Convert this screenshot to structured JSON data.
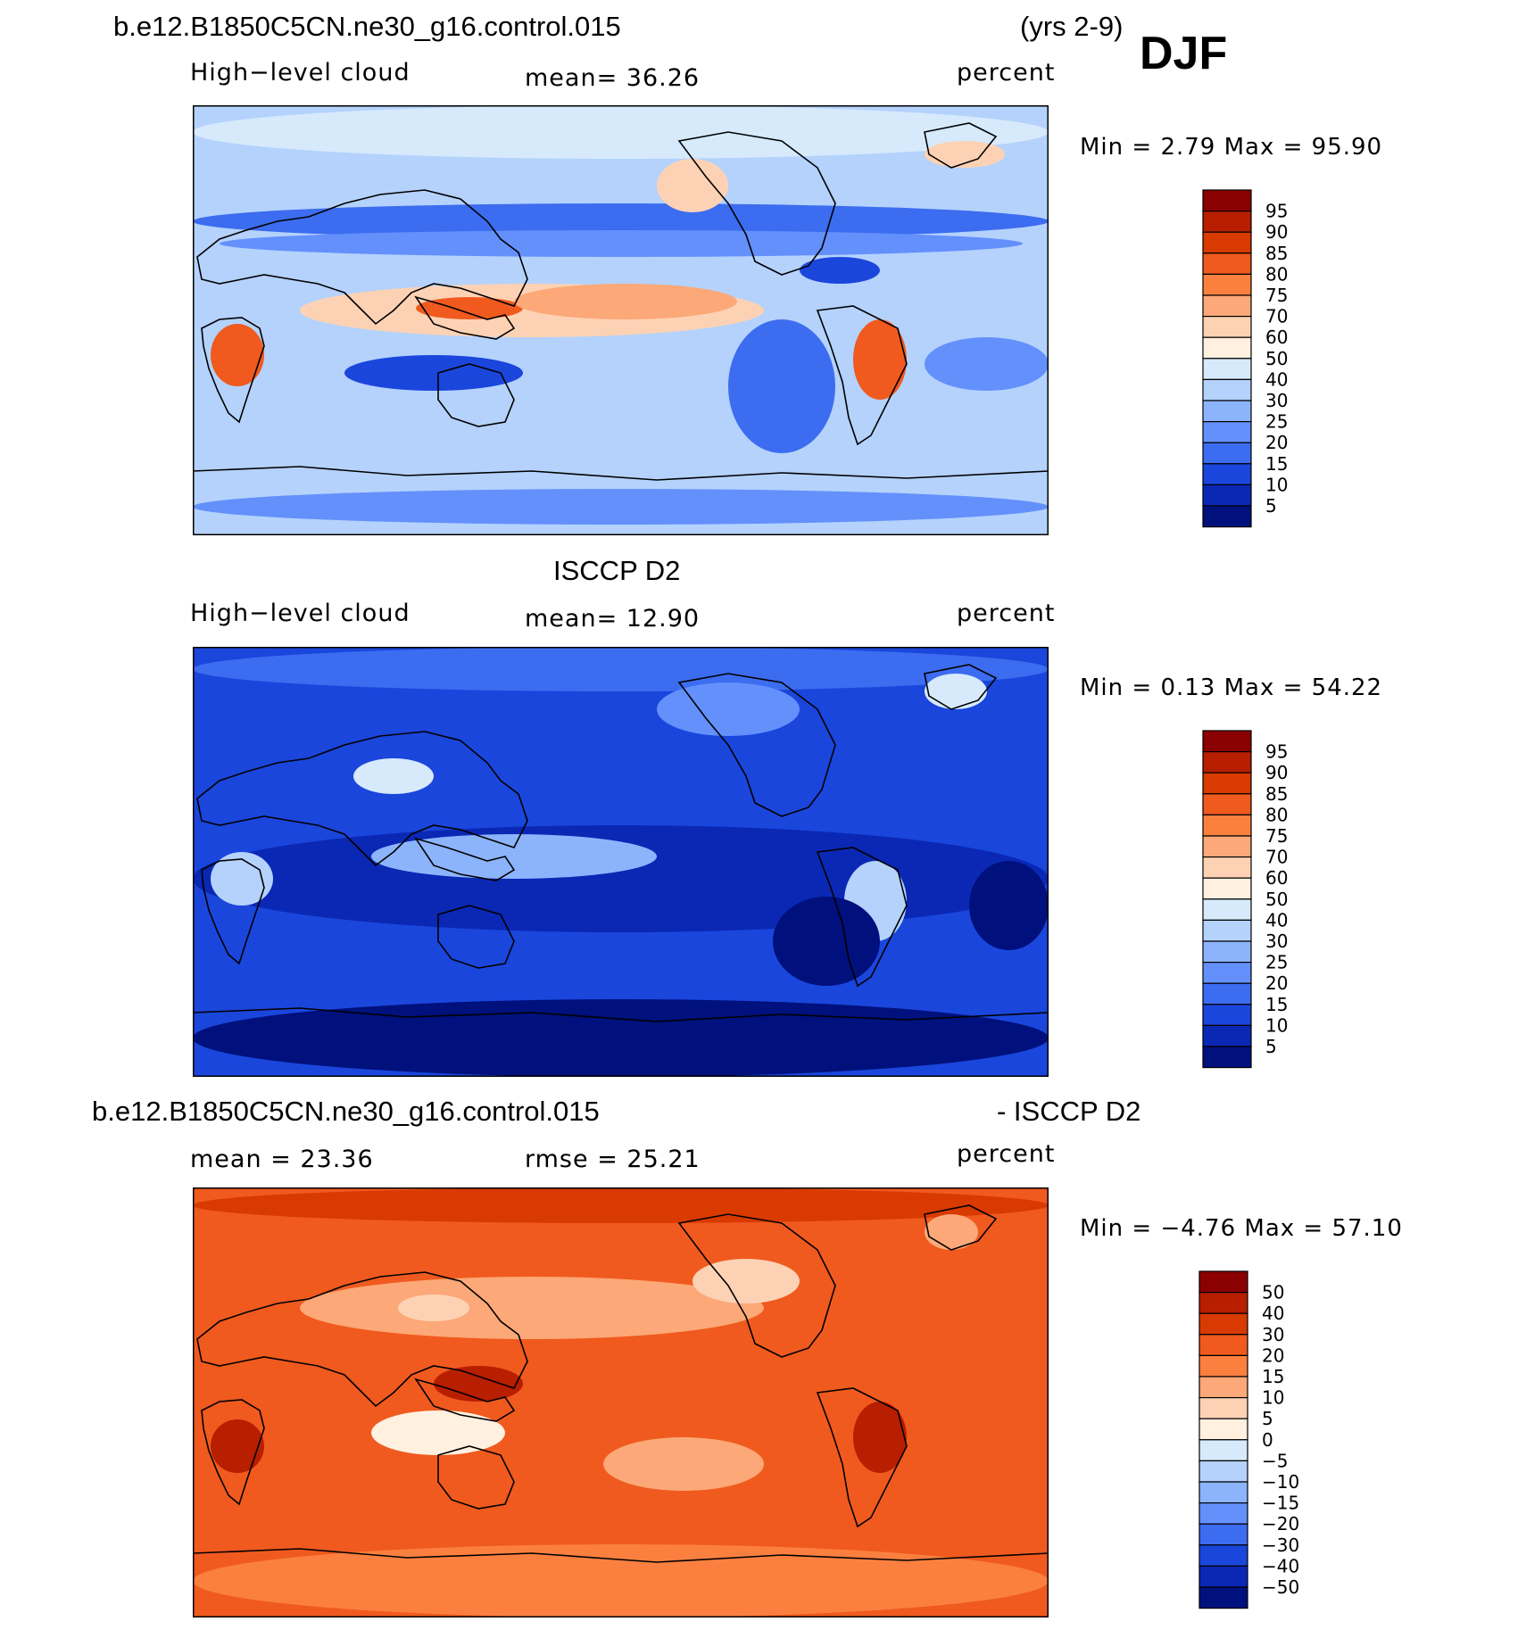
{
  "header": {
    "case_title": "b.e12.B1850C5CN.ne30_g16.control.015",
    "years": "(yrs 2-9)",
    "season": "DJF"
  },
  "panels": [
    {
      "id": "model",
      "section_title": "",
      "variable": "High−level cloud",
      "stat": "mean=   36.26",
      "units": "percent",
      "minmax": "Min =    2.79 Max =   95.90",
      "colorbar_labels": [
        "95",
        "90",
        "85",
        "80",
        "75",
        "70",
        "60",
        "50",
        "40",
        "30",
        "25",
        "20",
        "15",
        "10",
        "5"
      ],
      "palette": "model"
    },
    {
      "id": "obs",
      "section_title": "ISCCP D2",
      "variable": "High−level cloud",
      "stat": "mean=   12.90",
      "units": "percent",
      "minmax": "Min =    0.13 Max =   54.22",
      "colorbar_labels": [
        "95",
        "90",
        "85",
        "80",
        "75",
        "70",
        "60",
        "50",
        "40",
        "30",
        "25",
        "20",
        "15",
        "10",
        "5"
      ],
      "palette": "obs"
    },
    {
      "id": "diff",
      "section_title": "b.e12.B1850C5CN.ne30_g16.control.015",
      "section_suffix": "- ISCCP D2",
      "variable": "mean =   23.36",
      "stat": "rmse =   25.21",
      "units": "percent",
      "minmax": "Min =  −4.76 Max =   57.10",
      "colorbar_labels": [
        "50",
        "40",
        "30",
        "20",
        "15",
        "10",
        "5",
        "0",
        "−5",
        "−10",
        "−15",
        "−20",
        "−30",
        "−40",
        "−50"
      ],
      "palette": "diff"
    }
  ],
  "colors": {
    "colorbar": [
      "#8b0000",
      "#b81e00",
      "#d93a00",
      "#f05a1e",
      "#fb8040",
      "#fca878",
      "#fdd2b4",
      "#fff0e0",
      "#d6eafc",
      "#b4d2fc",
      "#8cb4fc",
      "#6490fc",
      "#3c6cf0",
      "#1a46dc",
      "#0a28b4",
      "#00107c"
    ]
  }
}
